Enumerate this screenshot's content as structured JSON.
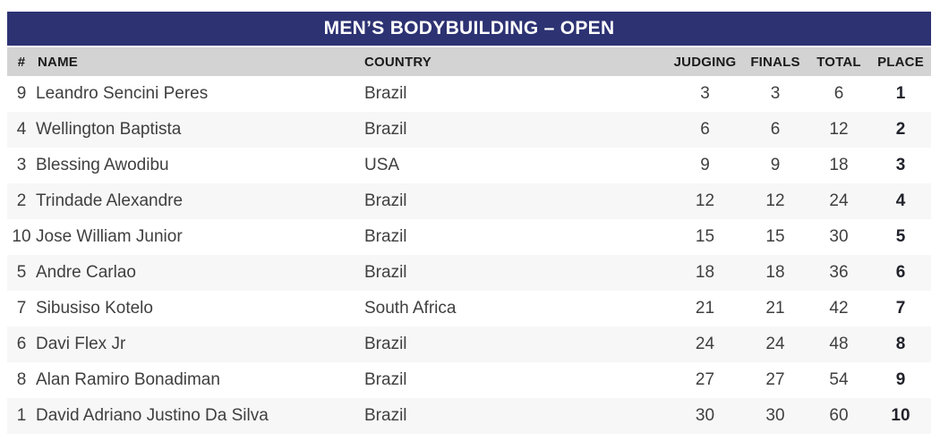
{
  "title": "MEN’S BODYBUILDING – OPEN",
  "colors": {
    "title_bar_bg": "#2d3273",
    "title_text": "#ffffff",
    "header_row_bg": "#d3d3d3",
    "header_text": "#1b1b1b",
    "row_alt_bg": "#f7f7f7",
    "row_bg": "#ffffff",
    "body_text": "#3f3f3f",
    "place_text": "#22222c"
  },
  "table": {
    "columns": [
      "#",
      "NAME",
      "COUNTRY",
      "JUDGING",
      "FINALS",
      "TOTAL",
      "PLACE"
    ],
    "rows": [
      {
        "num": "9",
        "name": "Leandro Sencini Peres",
        "country": "Brazil",
        "judging": "3",
        "finals": "3",
        "total": "6",
        "place": "1"
      },
      {
        "num": "4",
        "name": "Wellington Baptista",
        "country": "Brazil",
        "judging": "6",
        "finals": "6",
        "total": "12",
        "place": "2"
      },
      {
        "num": "3",
        "name": "Blessing Awodibu",
        "country": "USA",
        "judging": "9",
        "finals": "9",
        "total": "18",
        "place": "3"
      },
      {
        "num": "2",
        "name": "Trindade Alexandre",
        "country": "Brazil",
        "judging": "12",
        "finals": "12",
        "total": "24",
        "place": "4"
      },
      {
        "num": "10",
        "name": "Jose William Junior",
        "country": "Brazil",
        "judging": "15",
        "finals": "15",
        "total": "30",
        "place": "5"
      },
      {
        "num": "5",
        "name": "Andre Carlao",
        "country": "Brazil",
        "judging": "18",
        "finals": "18",
        "total": "36",
        "place": "6"
      },
      {
        "num": "7",
        "name": "Sibusiso Kotelo",
        "country": "South Africa",
        "judging": "21",
        "finals": "21",
        "total": "42",
        "place": "7"
      },
      {
        "num": "6",
        "name": "Davi Flex Jr",
        "country": "Brazil",
        "judging": "24",
        "finals": "24",
        "total": "48",
        "place": "8"
      },
      {
        "num": "8",
        "name": "Alan Ramiro Bonadiman",
        "country": "Brazil",
        "judging": "27",
        "finals": "27",
        "total": "54",
        "place": "9"
      },
      {
        "num": "1",
        "name": "David Adriano Justino Da Silva",
        "country": "Brazil",
        "judging": "30",
        "finals": "30",
        "total": "60",
        "place": "10"
      }
    ]
  }
}
